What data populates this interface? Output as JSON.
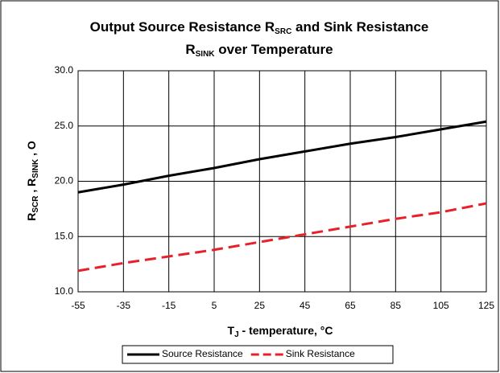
{
  "chart_data": {
    "type": "line",
    "title": [
      "Output Source Resistance R",
      "SRC",
      " and Sink Resistance",
      "R",
      "SINK",
      " over Temperature"
    ],
    "xlabel": [
      "T",
      "J",
      " - temperature, °C"
    ],
    "ylabel": [
      "R",
      "SCR",
      " , R",
      "SINK",
      " , O"
    ],
    "x": [
      -55,
      -35,
      -15,
      5,
      25,
      45,
      65,
      85,
      105,
      125
    ],
    "series": [
      {
        "name": "Source Resistance",
        "color": "#000000",
        "dashed": false,
        "values": [
          19.0,
          19.7,
          20.5,
          21.2,
          22.0,
          22.7,
          23.4,
          24.0,
          24.7,
          25.4
        ]
      },
      {
        "name": "Sink Resistance",
        "color": "#e8202a",
        "dashed": true,
        "values": [
          11.9,
          12.6,
          13.2,
          13.8,
          14.5,
          15.2,
          15.9,
          16.6,
          17.2,
          18.0
        ]
      }
    ],
    "xlim": [
      -55,
      125
    ],
    "xticks": [
      -55,
      -35,
      -15,
      5,
      25,
      45,
      65,
      85,
      105,
      125
    ],
    "ylim": [
      10,
      30
    ],
    "yticks": [
      {
        "value": 10,
        "label": "10.0"
      },
      {
        "value": 15,
        "label": "15.0"
      },
      {
        "value": 20,
        "label": "20.0"
      },
      {
        "value": 25,
        "label": "25.0"
      },
      {
        "value": 30,
        "label": "30.0"
      }
    ],
    "grid": true,
    "legend": "bottom"
  }
}
